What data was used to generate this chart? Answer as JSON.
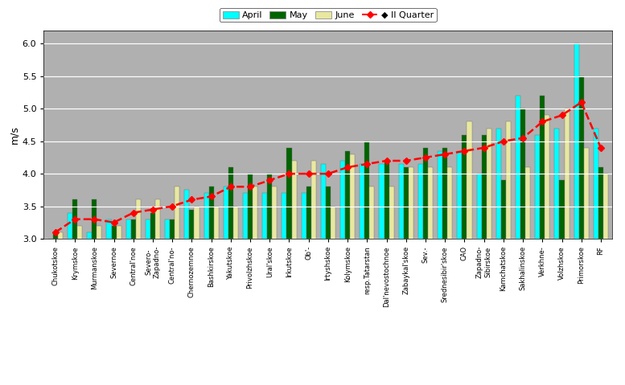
{
  "categories": [
    "Chukotskoe",
    "Krymskoe",
    "Murmanskoe",
    "Severnoe",
    "Central'noe",
    "Severo-\nZapadno-",
    "Central'no-",
    "Chernozemnoe",
    "Bashkirskoe",
    "Yakutskoe",
    "Privolzhskoe",
    "Ural'skoe",
    "Irkutskoe",
    "Ob'-",
    "Irtyshskoe",
    "Kolymskoe",
    "resp.Tatarstan",
    "Dal'nevostochnoe",
    "Zabaykal'skoe",
    "Sev.-",
    "Srednesibir'skoe",
    "CAO",
    "Zapadno-\nSibirskoe",
    "Kamchatskoe",
    "Sakhalinskoe",
    "Verkhne-",
    "Volzhskoe",
    "Primorskoe",
    "RF"
  ],
  "april": [
    3.0,
    3.4,
    3.1,
    3.3,
    3.3,
    3.3,
    3.3,
    3.75,
    3.7,
    3.8,
    3.7,
    3.7,
    3.7,
    3.7,
    4.15,
    4.2,
    4.15,
    4.15,
    4.15,
    4.15,
    4.35,
    4.35,
    4.0,
    4.7,
    5.2,
    4.6,
    4.7,
    6.0,
    4.7
  ],
  "may": [
    3.1,
    3.6,
    3.6,
    3.2,
    3.3,
    3.4,
    3.3,
    3.45,
    3.8,
    4.1,
    4.0,
    4.0,
    4.4,
    3.8,
    3.8,
    4.35,
    4.5,
    4.2,
    4.1,
    4.4,
    4.4,
    4.6,
    4.6,
    3.9,
    5.0,
    5.2,
    3.9,
    5.5,
    4.1
  ],
  "june": [
    3.1,
    3.2,
    3.2,
    3.2,
    3.6,
    3.6,
    3.8,
    3.5,
    3.5,
    3.5,
    3.8,
    3.8,
    4.2,
    4.2,
    3.5,
    4.3,
    3.8,
    3.8,
    4.1,
    4.1,
    4.1,
    4.8,
    4.7,
    4.8,
    4.1,
    4.9,
    5.0,
    4.4,
    4.0
  ],
  "ii_quarter": [
    3.1,
    3.3,
    3.3,
    3.25,
    3.4,
    3.45,
    3.5,
    3.6,
    3.65,
    3.8,
    3.8,
    3.9,
    4.0,
    4.0,
    4.0,
    4.1,
    4.15,
    4.2,
    4.2,
    4.25,
    4.3,
    4.35,
    4.4,
    4.5,
    4.55,
    4.8,
    4.9,
    5.1,
    4.4
  ],
  "april_color": "#00FFFF",
  "may_color": "#006400",
  "june_color": "#E8E8A0",
  "ii_quarter_color": "#FF0000",
  "background_color": "#B0B0B0",
  "fig_background": "#FFFFFF",
  "ylabel": "m/s",
  "ylim_min": 3.0,
  "ylim_max": 6.2,
  "yticks": [
    3.0,
    3.5,
    4.0,
    4.5,
    5.0,
    5.5,
    6.0
  ]
}
